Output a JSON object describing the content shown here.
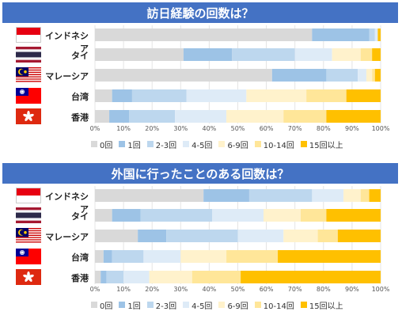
{
  "colors": [
    "#d9d9d9",
    "#9dc3e6",
    "#bdd7ee",
    "#deebf7",
    "#fff2cc",
    "#ffe699",
    "#ffc000"
  ],
  "categories": [
    "インドネシア",
    "タイ",
    "マレーシア",
    "台湾",
    "香港"
  ],
  "flags": [
    "indonesia-flag",
    "thailand-flag",
    "malaysia-flag",
    "taiwan-flag",
    "hongkong-flag"
  ],
  "legend": [
    "0回",
    "1回",
    "2-3回",
    "4-5回",
    "6-9回",
    "10-14回",
    "15回以上"
  ],
  "ticks": [
    "0%",
    "10%",
    "20%",
    "30%",
    "40%",
    "50%",
    "60%",
    "70%",
    "80%",
    "90%",
    "100%"
  ],
  "chart_data": [
    {
      "type": "bar",
      "orientation": "horizontal",
      "stacked": true,
      "title": "訪日経験の回数は？",
      "categories": [
        "インドネシア",
        "タイ",
        "マレーシア",
        "台湾",
        "香港"
      ],
      "xlim": [
        0,
        100
      ],
      "series": [
        {
          "name": "0回",
          "values": [
            76,
            31,
            62,
            6,
            5
          ]
        },
        {
          "name": "1回",
          "values": [
            20,
            17,
            19,
            7,
            7
          ]
        },
        {
          "name": "2-3回",
          "values": [
            2,
            22,
            11,
            19,
            16
          ]
        },
        {
          "name": "4-5回",
          "values": [
            1,
            13,
            3,
            21,
            18
          ]
        },
        {
          "name": "6-9回",
          "values": [
            0,
            10,
            2,
            21,
            20
          ]
        },
        {
          "name": "10-14回",
          "values": [
            0,
            4,
            1,
            14,
            15
          ]
        },
        {
          "name": "15回以上",
          "values": [
            1,
            3,
            2,
            12,
            19
          ]
        }
      ]
    },
    {
      "type": "bar",
      "orientation": "horizontal",
      "stacked": true,
      "title": "外国に行ったことのある回数は？",
      "categories": [
        "インドネシア",
        "タイ",
        "マレーシア",
        "台湾",
        "香港"
      ],
      "xlim": [
        0,
        100
      ],
      "series": [
        {
          "name": "0回",
          "values": [
            38,
            6,
            15,
            3,
            2
          ]
        },
        {
          "name": "1回",
          "values": [
            16,
            10,
            10,
            3,
            2
          ]
        },
        {
          "name": "2-3回",
          "values": [
            22,
            25,
            25,
            11,
            6
          ]
        },
        {
          "name": "4-5回",
          "values": [
            11,
            18,
            16,
            13,
            9
          ]
        },
        {
          "name": "6-9回",
          "values": [
            6,
            13,
            12,
            16,
            15
          ]
        },
        {
          "name": "10-14回",
          "values": [
            3,
            9,
            7,
            18,
            17
          ]
        },
        {
          "name": "15回以上",
          "values": [
            4,
            19,
            15,
            36,
            49
          ]
        }
      ]
    }
  ]
}
